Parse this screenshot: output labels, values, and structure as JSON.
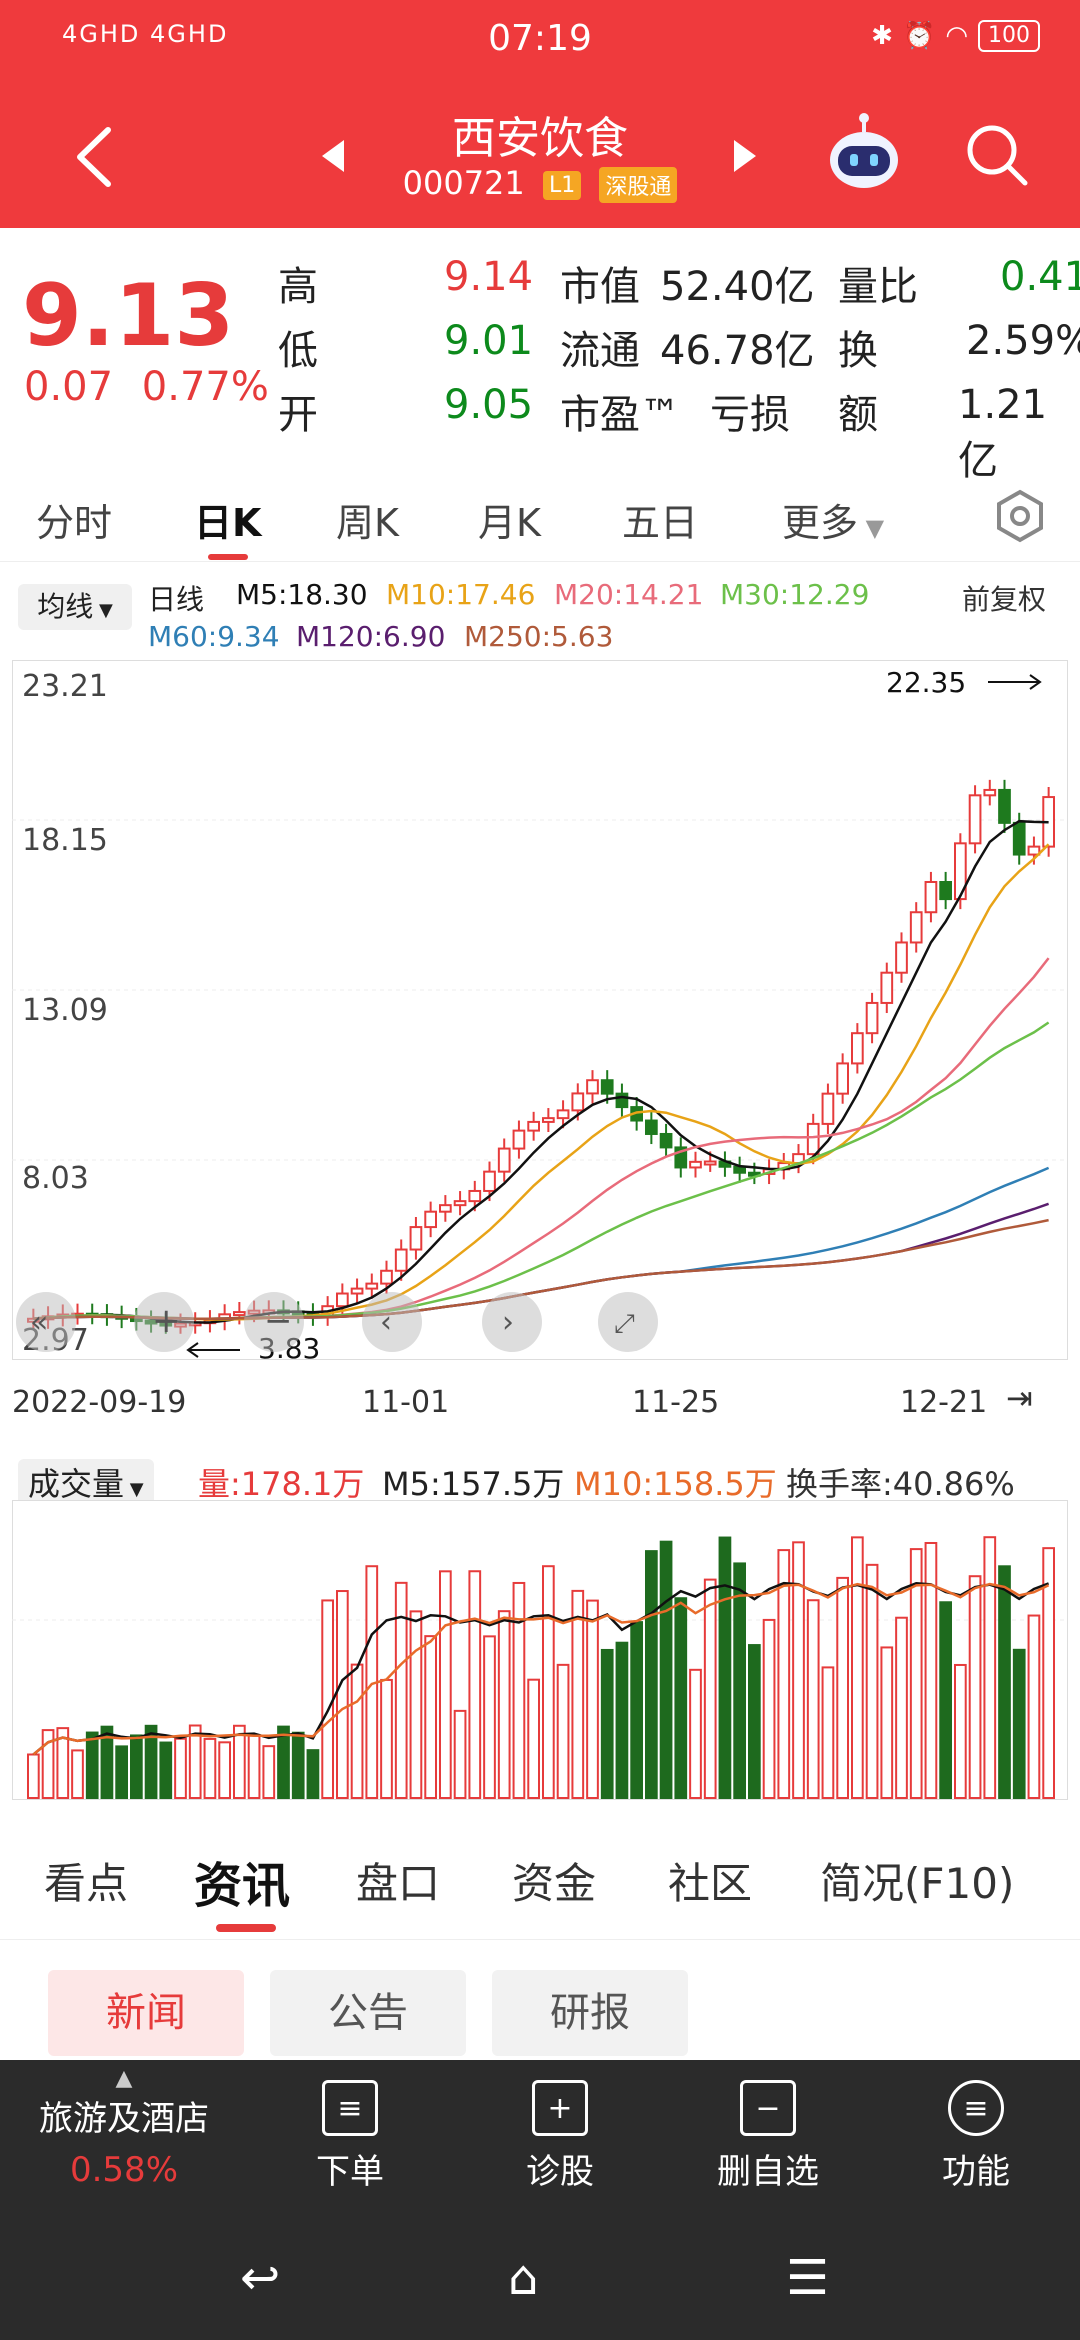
{
  "status": {
    "network": "4GHD 4GHD",
    "time": "07:19",
    "battery": "100"
  },
  "header": {
    "name": "西安饮食",
    "code": "000721",
    "tag_level": "L1",
    "tag_market": "深股通"
  },
  "quote": {
    "price": "9.13",
    "change": "0.07",
    "change_pct": "0.77%",
    "high_label": "高",
    "high": "9.14",
    "low_label": "低",
    "low": "9.01",
    "open_label": "开",
    "open": "9.05",
    "mktcap_label": "市值",
    "mktcap": "52.40亿",
    "float_label": "流通",
    "float": "46.78亿",
    "pe_label": "市盈™",
    "pe": "亏损",
    "vol_ratio_label": "量比",
    "vol_ratio": "0.41",
    "turnover_label": "换",
    "turnover": "2.59%",
    "amount_label": "额",
    "amount": "1.21亿"
  },
  "ktabs": [
    "分时",
    "日K",
    "周K",
    "月K",
    "五日",
    "更多"
  ],
  "ma": {
    "button": "均线",
    "line_label": "日线",
    "m5": "M5:18.30",
    "m10": "M10:17.46",
    "m20": "M20:14.21",
    "m30": "M30:12.29",
    "m60": "M60:9.34",
    "m120": "M120:6.90",
    "m250": "M250:5.63",
    "adjust": "前复权",
    "colors": {
      "m5": "#111111",
      "m10": "#e8a317",
      "m20": "#e86b7a",
      "m30": "#6cc04a",
      "m60": "#2f7fb5",
      "m120": "#5a1e6e",
      "m250": "#b05a3a"
    }
  },
  "chart": {
    "y_labels": [
      "23.21",
      "18.15",
      "13.09",
      "8.03",
      "2.97"
    ],
    "high_mark": "22.35",
    "low_mark": "3.83",
    "dates": [
      "2022-09-19",
      "11-01",
      "11-25",
      "12-21"
    ]
  },
  "volume": {
    "button": "成交量",
    "vol": "量:178.1万",
    "m5": "M5:157.5万",
    "m10": "M10:158.5万",
    "turnover": "换手率:40.86%"
  },
  "news_tabs": [
    "看点",
    "资讯",
    "盘口",
    "资金",
    "社区",
    "简况(F10)"
  ],
  "subtabs": [
    "新闻",
    "公告",
    "研报"
  ],
  "bottom": {
    "sector": "旅游及酒店",
    "sector_pct": "0.58%",
    "items": [
      "下单",
      "诊股",
      "删自选",
      "功能"
    ]
  }
}
